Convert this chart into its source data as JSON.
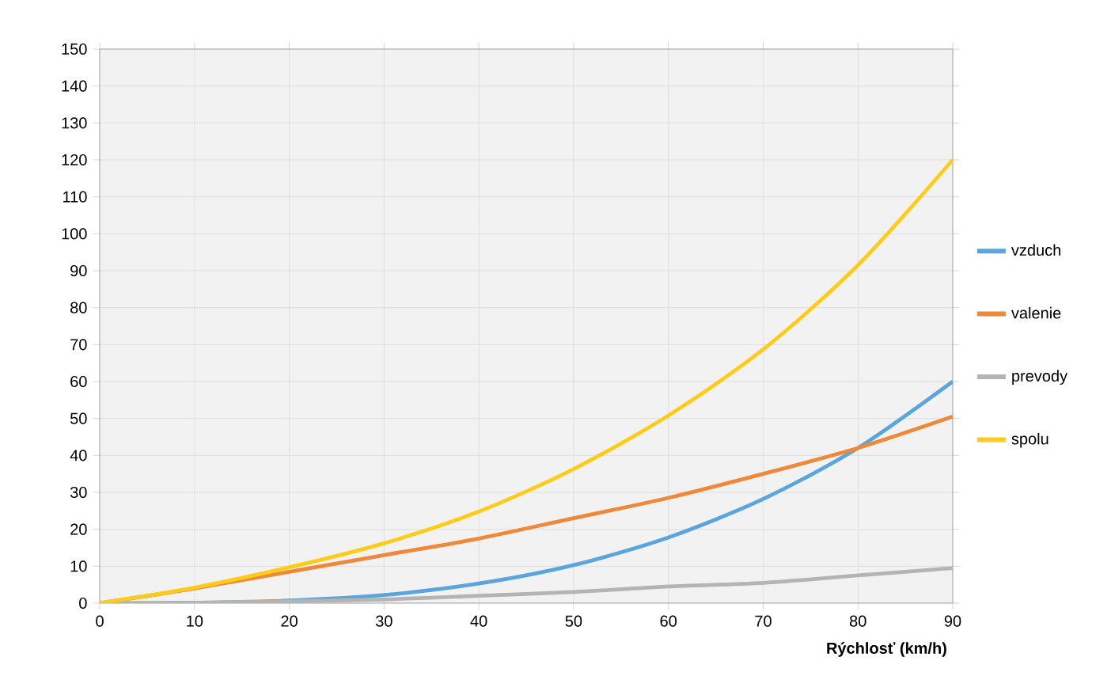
{
  "chart_data": {
    "type": "line",
    "xlabel": "Rýchlosť (km/h)",
    "x": [
      0,
      10,
      20,
      30,
      40,
      50,
      60,
      70,
      80,
      90
    ],
    "series": [
      {
        "name": "vzduch",
        "color": "#5aa5dc",
        "values": [
          0,
          0.1,
          0.7,
          2.2,
          5.3,
          10.3,
          17.8,
          28.2,
          42,
          60
        ]
      },
      {
        "name": "valenie",
        "color": "#f0883a",
        "values": [
          0,
          4,
          8.5,
          13,
          17.5,
          23,
          28.5,
          35,
          42,
          50.5
        ]
      },
      {
        "name": "prevody",
        "color": "#b4b4b4",
        "values": [
          0,
          0.1,
          0.5,
          1,
          2,
          3,
          4.5,
          5.5,
          7.5,
          9.5
        ]
      },
      {
        "name": "spolu",
        "color": "#ffcc1a",
        "values": [
          0,
          4.2,
          9.7,
          16.2,
          24.8,
          36.3,
          50.8,
          68.7,
          91.5,
          120
        ]
      }
    ],
    "xlim": [
      0,
      90
    ],
    "xticks": [
      0,
      10,
      20,
      30,
      40,
      50,
      60,
      70,
      80,
      90
    ],
    "ylim": [
      0,
      150
    ],
    "yticks": [
      0,
      10,
      20,
      30,
      40,
      50,
      60,
      70,
      80,
      90,
      100,
      110,
      120,
      130,
      140,
      150
    ],
    "grid": true,
    "legend": "right",
    "marker": "none",
    "line_style": "solid"
  }
}
